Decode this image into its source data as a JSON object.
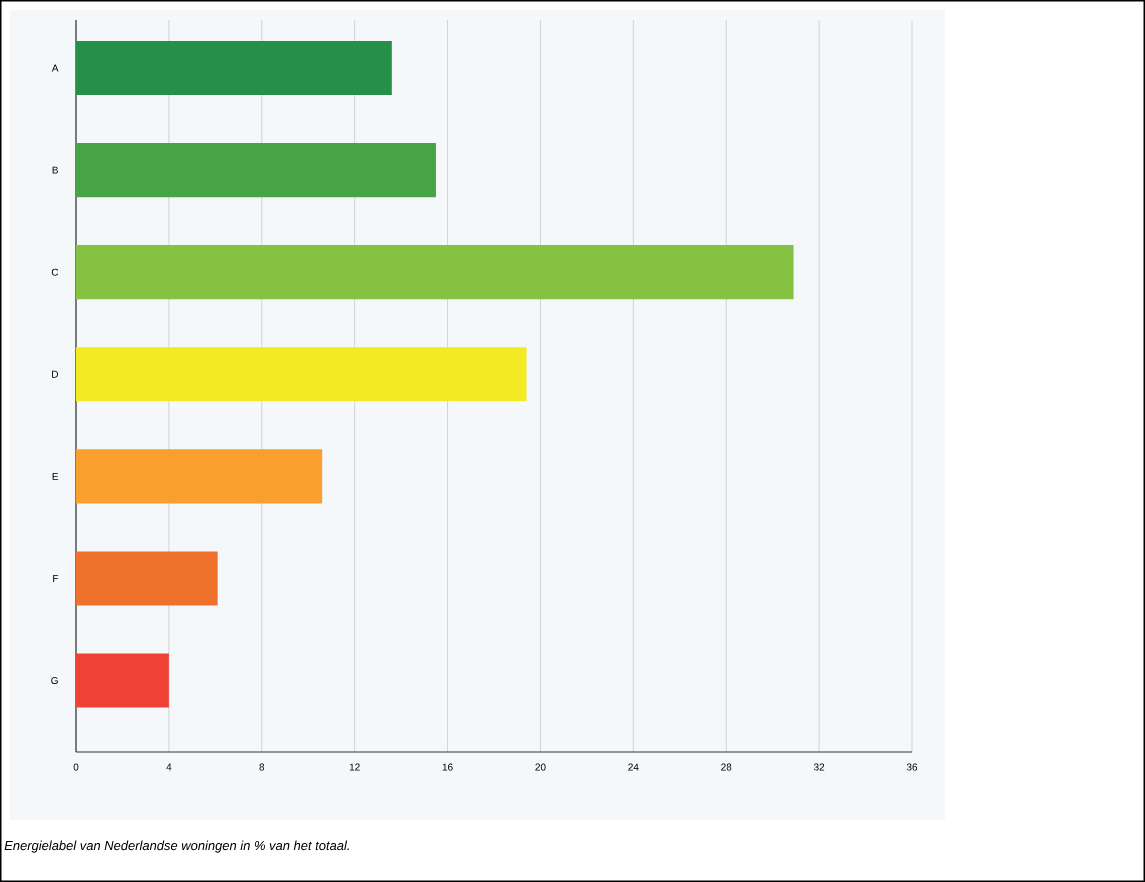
{
  "chart_data": {
    "type": "bar",
    "orientation": "horizontal",
    "categories": [
      "A",
      "B",
      "C",
      "D",
      "E",
      "F",
      "G"
    ],
    "values": [
      13.6,
      15.5,
      30.9,
      19.4,
      10.6,
      6.1,
      4.0
    ],
    "colors": [
      "#268f48",
      "#47a447",
      "#86c241",
      "#f3ea24",
      "#f89f2d",
      "#f0712b",
      "#ee4236"
    ],
    "xlim": [
      0,
      36
    ],
    "xticks": [
      0,
      4,
      8,
      12,
      16,
      20,
      24,
      28,
      32,
      36
    ],
    "grid": "x",
    "annotations": [
      "*Energielabel van Nederlandse woningen in % van het totaal.*"
    ]
  }
}
